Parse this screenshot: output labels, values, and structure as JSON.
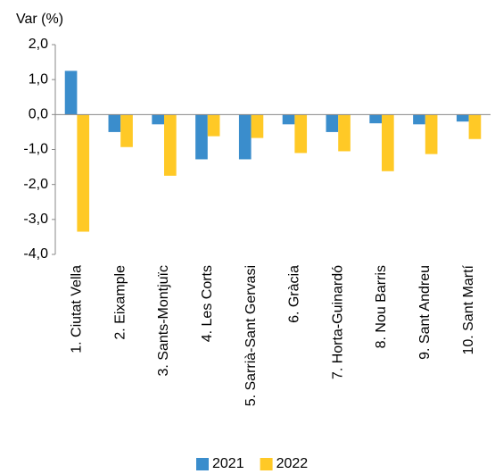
{
  "chart_data": {
    "type": "bar",
    "ylabel": "Var (%)",
    "categories": [
      "1. Ciutat Vella",
      "2. Eixample",
      "3. Sants-Montjuïc",
      "4. Les Corts",
      "5. Sarrià-Sant Gervasi",
      "6. Gràcia",
      "7. Horta-Guinardó",
      "8. Nou Barris",
      "9. Sant Andreu",
      "10. Sant Martí"
    ],
    "series": [
      {
        "name": "2021",
        "color": "#3a8dcc",
        "values": [
          1.25,
          -0.5,
          -0.28,
          -1.28,
          -1.28,
          -0.28,
          -0.5,
          -0.25,
          -0.28,
          -0.2
        ]
      },
      {
        "name": "2022",
        "color": "#ffc926",
        "values": [
          -3.35,
          -0.93,
          -1.75,
          -0.62,
          -0.67,
          -1.1,
          -1.05,
          -1.62,
          -1.13,
          -0.7
        ]
      }
    ],
    "ylim": [
      -4,
      2
    ],
    "yticks": [
      {
        "value": 2,
        "label": "2,0"
      },
      {
        "value": 1,
        "label": "1,0"
      },
      {
        "value": 0,
        "label": "0,0"
      },
      {
        "value": -1,
        "label": "-1,0"
      },
      {
        "value": -2,
        "label": "-2,0"
      },
      {
        "value": -3,
        "label": "-3,0"
      },
      {
        "value": -4,
        "label": "-4,0"
      }
    ],
    "grid": false,
    "legend": "bottom"
  }
}
